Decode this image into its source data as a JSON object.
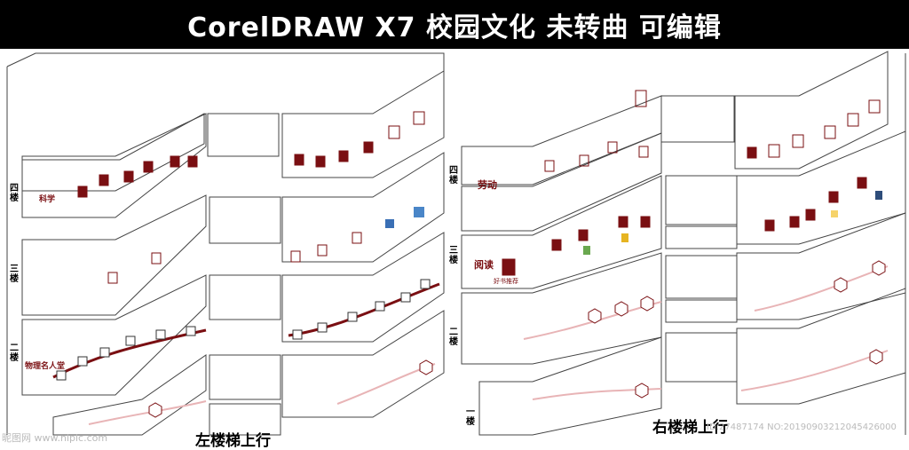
{
  "title": "CorelDRAW X7   校园文化  未转曲 可编辑",
  "floor_labels": {
    "left_4": "四楼",
    "left_3": "三楼",
    "left_2": "二楼",
    "right_4": "四楼",
    "right_3": "三楼",
    "right_2": "二楼",
    "right_1": "一楼"
  },
  "captions": {
    "left": "左楼梯上行",
    "right": "右楼梯上行"
  },
  "themes": {
    "science": "科学",
    "physics": "物理名人堂",
    "labor": "劳动",
    "reading": "阅读",
    "good_books": "好书推荐"
  },
  "watermark": {
    "site_left": "昵图网 www.nipic.com",
    "id_right": "ID:27487174 NO:20190903212045426000"
  },
  "colors": {
    "accent": "#7a0f12",
    "line": "#333333",
    "background": "#ffffff",
    "title_bar": "#000000"
  }
}
